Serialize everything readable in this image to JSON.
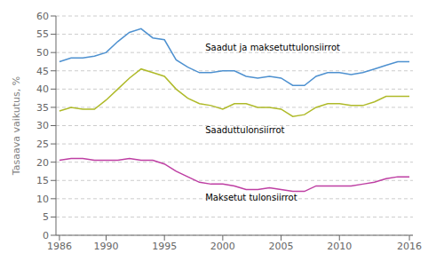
{
  "chart_data": {
    "type": "line",
    "x": [
      1986,
      1987,
      1988,
      1989,
      1990,
      1991,
      1992,
      1993,
      1994,
      1995,
      1996,
      1997,
      1998,
      1999,
      2000,
      2001,
      2002,
      2003,
      2004,
      2005,
      2006,
      2007,
      2008,
      2009,
      2010,
      2011,
      2012,
      2013,
      2014,
      2015,
      2016
    ],
    "series": [
      {
        "color": "#4E91D0",
        "values": [
          47.5,
          48.5,
          48.5,
          49.0,
          50.0,
          53.0,
          55.5,
          56.5,
          54.0,
          53.5,
          48.0,
          46.0,
          44.5,
          44.5,
          45.0,
          45.0,
          43.5,
          43.0,
          43.5,
          43.0,
          41.0,
          41.0,
          43.5,
          44.5,
          44.5,
          44.0,
          44.5,
          45.5,
          46.5,
          47.5,
          47.5
        ]
      },
      {
        "color": "#AFBA29",
        "values": [
          34.0,
          35.0,
          34.5,
          34.5,
          37.0,
          40.0,
          43.0,
          45.5,
          44.5,
          43.5,
          40.0,
          37.5,
          36.0,
          35.5,
          34.5,
          36.0,
          36.0,
          35.0,
          35.0,
          34.5,
          32.5,
          33.0,
          35.0,
          36.0,
          36.0,
          35.5,
          35.5,
          36.5,
          38.0,
          38.0,
          38.0
        ]
      },
      {
        "color": "#BE3FA3",
        "values": [
          20.5,
          21.0,
          21.0,
          20.5,
          20.5,
          20.5,
          21.0,
          20.5,
          20.5,
          19.5,
          17.5,
          16.0,
          14.5,
          14.0,
          14.0,
          13.5,
          12.5,
          12.5,
          13.0,
          12.5,
          12.0,
          12.0,
          13.5,
          13.5,
          13.5,
          13.5,
          14.0,
          14.5,
          15.5,
          16.0,
          16.0
        ]
      }
    ],
    "ylabel": "Tasaava vaikutus, %",
    "ylim": [
      0,
      60
    ],
    "yticks": [
      0,
      5,
      10,
      15,
      20,
      25,
      30,
      35,
      40,
      45,
      50,
      55,
      60
    ],
    "xlim": [
      1985.7,
      2016.3
    ],
    "xticks": [
      1986,
      1990,
      1995,
      2000,
      2005,
      2010,
      2016
    ],
    "grid": true,
    "annotations": [
      {
        "text": "Saadut ja maksetuttulonsiirrot",
        "x": 1998.5,
        "y": 50.5
      },
      {
        "text": "Saaduttulonsiirrot",
        "x": 1998.5,
        "y": 28.0
      },
      {
        "text": "Maksetut tulonsiirrot",
        "x": 1998.5,
        "y": 9.5
      }
    ]
  }
}
